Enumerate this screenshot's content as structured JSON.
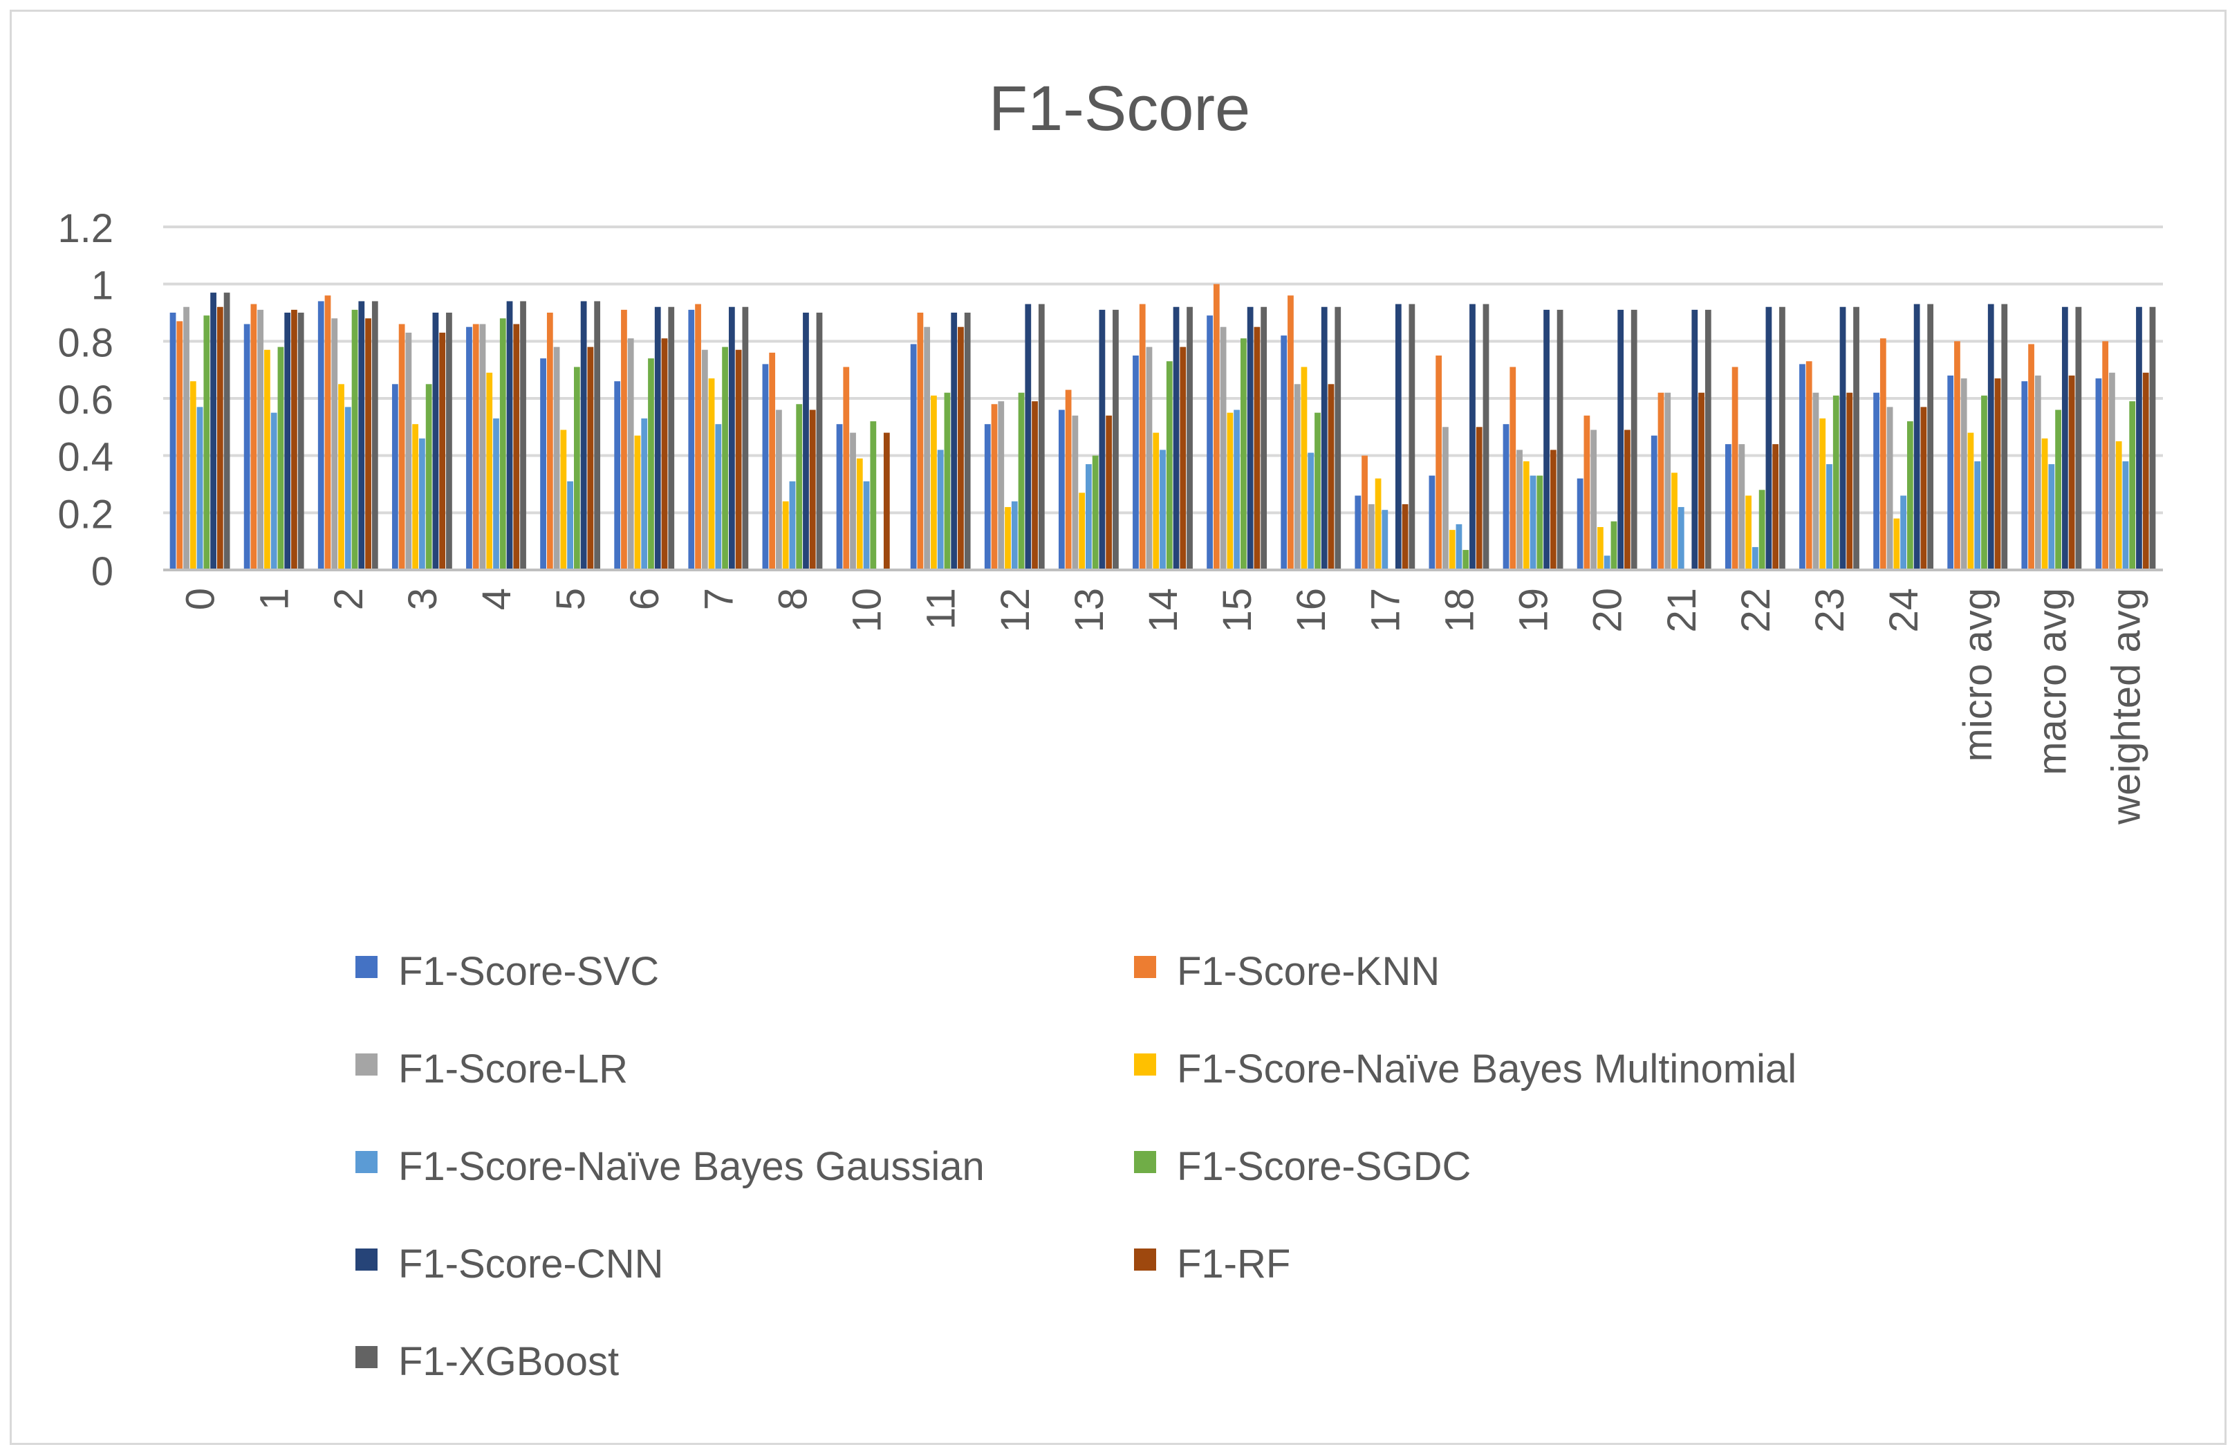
{
  "chart_data": {
    "type": "bar",
    "title": "F1-Score",
    "xlabel": "",
    "ylabel": "",
    "ylim": [
      0,
      1.2
    ],
    "yticks": [
      "0",
      "0.2",
      "0.4",
      "0.6",
      "0.8",
      "1",
      "1.2"
    ],
    "grid": true,
    "legend_position": "bottom",
    "categories": [
      "0",
      "1",
      "2",
      "3",
      "4",
      "5",
      "6",
      "7",
      "8",
      "10",
      "11",
      "12",
      "13",
      "14",
      "15",
      "16",
      "17",
      "18",
      "19",
      "20",
      "21",
      "22",
      "23",
      "24",
      "micro avg",
      "macro avg",
      "weighted avg"
    ],
    "series": [
      {
        "name": "F1-Score-SVC",
        "color": "#4472C4",
        "values": [
          0.9,
          0.86,
          0.94,
          0.65,
          0.85,
          0.74,
          0.66,
          0.91,
          0.72,
          0.51,
          0.79,
          0.51,
          0.56,
          0.75,
          0.89,
          0.82,
          0.26,
          0.33,
          0.51,
          0.32,
          0.47,
          0.44,
          0.72,
          0.62,
          0.68,
          0.66,
          0.67
        ]
      },
      {
        "name": "F1-Score-KNN",
        "color": "#ED7D31",
        "values": [
          0.87,
          0.93,
          0.96,
          0.86,
          0.86,
          0.9,
          0.91,
          0.93,
          0.76,
          0.71,
          0.9,
          0.58,
          0.63,
          0.93,
          1.0,
          0.96,
          0.4,
          0.75,
          0.71,
          0.54,
          0.62,
          0.71,
          0.73,
          0.81,
          0.8,
          0.79,
          0.8
        ]
      },
      {
        "name": "F1-Score-LR",
        "color": "#A5A5A5",
        "values": [
          0.92,
          0.91,
          0.88,
          0.83,
          0.86,
          0.78,
          0.81,
          0.77,
          0.56,
          0.48,
          0.85,
          0.59,
          0.54,
          0.78,
          0.85,
          0.65,
          0.23,
          0.5,
          0.42,
          0.49,
          0.62,
          0.44,
          0.62,
          0.57,
          0.67,
          0.68,
          0.69
        ]
      },
      {
        "name": "F1-Score-Naïve Bayes Multinomial",
        "color": "#FFC000",
        "values": [
          0.66,
          0.77,
          0.65,
          0.51,
          0.69,
          0.49,
          0.47,
          0.67,
          0.24,
          0.39,
          0.61,
          0.22,
          0.27,
          0.48,
          0.55,
          0.71,
          0.32,
          0.14,
          0.38,
          0.15,
          0.34,
          0.26,
          0.53,
          0.18,
          0.48,
          0.46,
          0.45
        ]
      },
      {
        "name": "F1-Score-Naïve Bayes Gaussian",
        "color": "#5B9BD5",
        "values": [
          0.57,
          0.55,
          0.57,
          0.46,
          0.53,
          0.31,
          0.53,
          0.51,
          0.31,
          0.31,
          0.42,
          0.24,
          0.37,
          0.42,
          0.56,
          0.41,
          0.21,
          0.16,
          0.33,
          0.05,
          0.22,
          0.08,
          0.37,
          0.26,
          0.38,
          0.37,
          0.38
        ]
      },
      {
        "name": "F1-Score-SGDC",
        "color": "#70AD47",
        "values": [
          0.89,
          0.78,
          0.91,
          0.65,
          0.88,
          0.71,
          0.74,
          0.78,
          0.58,
          0.52,
          0.62,
          0.62,
          0.4,
          0.73,
          0.81,
          0.55,
          0,
          0.07,
          0.33,
          0.17,
          0,
          0.28,
          0.61,
          0.52,
          0.61,
          0.56,
          0.59
        ]
      },
      {
        "name": "F1-Score-CNN",
        "color": "#264478",
        "values": [
          0.97,
          0.9,
          0.94,
          0.9,
          0.94,
          0.94,
          0.92,
          0.92,
          0.9,
          0,
          0.9,
          0.93,
          0.91,
          0.92,
          0.92,
          0.92,
          0.93,
          0.93,
          0.91,
          0.91,
          0.91,
          0.92,
          0.92,
          0.93,
          0.93,
          0.92,
          0.92
        ]
      },
      {
        "name": "F1-RF",
        "color": "#9E480E",
        "values": [
          0.92,
          0.91,
          0.88,
          0.83,
          0.86,
          0.78,
          0.81,
          0.77,
          0.56,
          0.48,
          0.85,
          0.59,
          0.54,
          0.78,
          0.85,
          0.65,
          0.23,
          0.5,
          0.42,
          0.49,
          0.62,
          0.44,
          0.62,
          0.57,
          0.67,
          0.68,
          0.69
        ]
      },
      {
        "name": "F1-XGBoost",
        "color": "#636363",
        "values": [
          0.97,
          0.9,
          0.94,
          0.9,
          0.94,
          0.94,
          0.92,
          0.92,
          0.9,
          0,
          0.9,
          0.93,
          0.91,
          0.92,
          0.92,
          0.92,
          0.93,
          0.93,
          0.91,
          0.91,
          0.91,
          0.92,
          0.92,
          0.93,
          0.93,
          0.92,
          0.92
        ]
      }
    ]
  },
  "colors": {
    "grid": "#d9d9d9",
    "text": "#595959",
    "axis": "#bfbfbf"
  }
}
